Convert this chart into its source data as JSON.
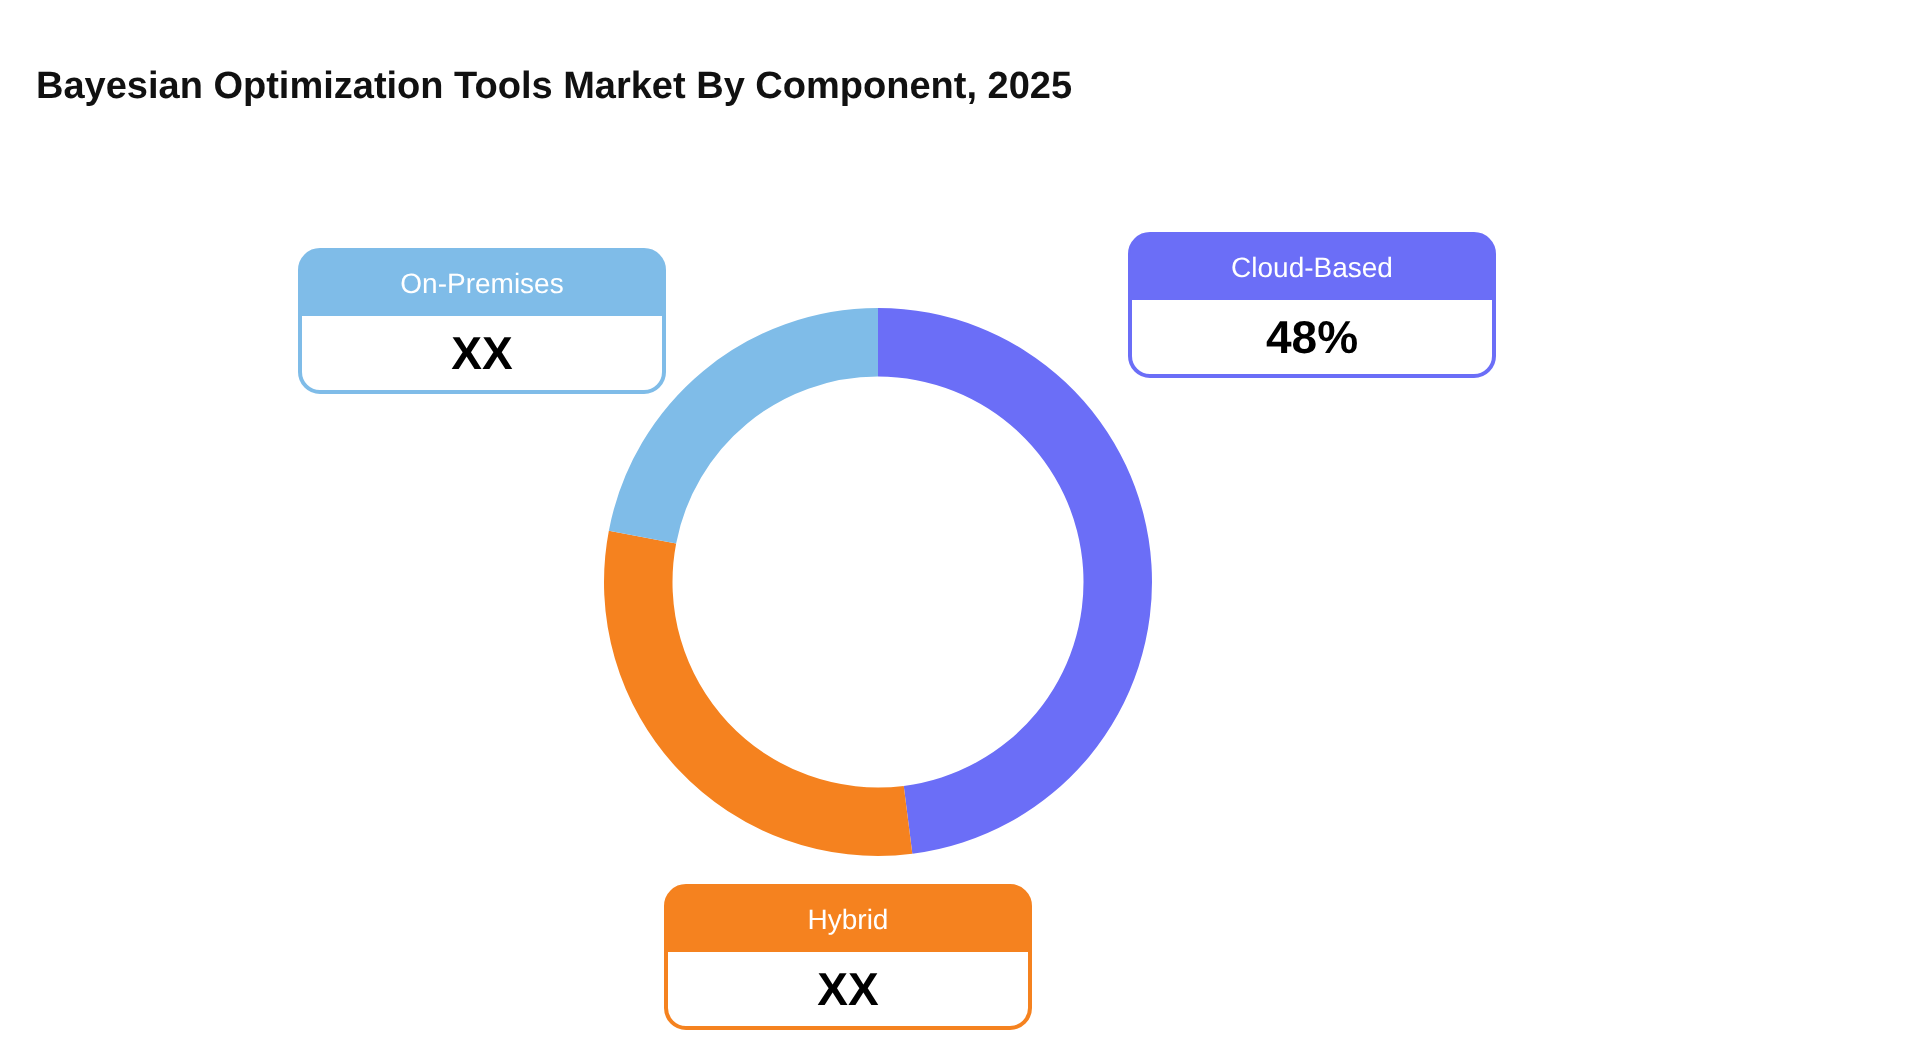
{
  "chart_data": {
    "type": "donut",
    "title": "Bayesian Optimization Tools Market By Component, 2025",
    "categories": [
      "Cloud-Based",
      "Hybrid",
      "On-Premises"
    ],
    "values": [
      48,
      30,
      22
    ],
    "colors": [
      "#6b6ef7",
      "#f5821f",
      "#7fbce8"
    ],
    "value_labels": [
      "48%",
      "XX",
      "XX"
    ]
  }
}
